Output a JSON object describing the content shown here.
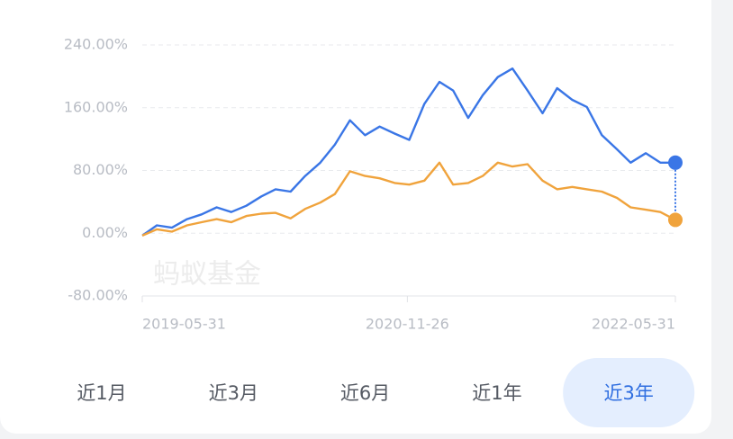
{
  "chart_data": {
    "type": "line",
    "watermark": "蚂蚁基金",
    "x": [
      "2019-05-31",
      "2019-06-30",
      "2019-07-31",
      "2019-08-31",
      "2019-09-30",
      "2019-10-31",
      "2019-11-30",
      "2019-12-31",
      "2020-01-31",
      "2020-02-29",
      "2020-03-31",
      "2020-04-30",
      "2020-05-31",
      "2020-06-30",
      "2020-07-31",
      "2020-08-31",
      "2020-09-30",
      "2020-10-31",
      "2020-11-30",
      "2020-12-31",
      "2021-01-31",
      "2021-02-28",
      "2021-03-31",
      "2021-04-30",
      "2021-05-31",
      "2021-06-30",
      "2021-07-31",
      "2021-08-31",
      "2021-09-30",
      "2021-10-31",
      "2021-11-30",
      "2021-12-31",
      "2022-01-31",
      "2022-02-28",
      "2022-03-31",
      "2022-04-30",
      "2022-05-31"
    ],
    "series": [
      {
        "color": "#3a76e6",
        "values": [
          -3,
          10,
          7,
          18,
          24,
          33,
          27,
          35,
          47,
          56,
          53,
          73,
          90,
          113,
          144,
          125,
          136,
          127,
          119,
          165,
          193,
          182,
          147,
          176,
          199,
          210,
          182,
          153,
          185,
          170,
          161,
          125,
          107,
          90,
          102,
          90,
          90
        ]
      },
      {
        "color": "#f0a33c",
        "values": [
          -3,
          5,
          2,
          10,
          14,
          18,
          14,
          22,
          25,
          26,
          19,
          31,
          39,
          50,
          79,
          73,
          70,
          64,
          62,
          67,
          90,
          62,
          64,
          73,
          90,
          85,
          88,
          67,
          56,
          59,
          56,
          53,
          45,
          33,
          30,
          27,
          17
        ]
      }
    ],
    "xlim": [
      "2019-05-31",
      "2022-05-31"
    ],
    "xticks": [
      "2019-05-31",
      "2020-11-26",
      "2022-05-31"
    ],
    "ylim": [
      -80,
      240
    ],
    "yticks": [
      {
        "value": -80,
        "label": "-80.00%"
      },
      {
        "value": 0,
        "label": "0.00%"
      },
      {
        "value": 80,
        "label": "80.00%"
      },
      {
        "value": 160,
        "label": "160.00%"
      },
      {
        "value": 240,
        "label": "240.00%"
      }
    ],
    "grid": true
  },
  "tabs": {
    "items": [
      "近1月",
      "近3月",
      "近6月",
      "近1年",
      "近3年"
    ],
    "selected": 4
  }
}
